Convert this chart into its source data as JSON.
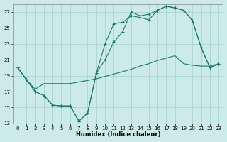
{
  "xlabel": "Humidex (Indice chaleur)",
  "bg_color": "#cceae8",
  "grid_color": "#aad4d0",
  "line_color": "#1a7a6e",
  "xlim": [
    -0.5,
    23.5
  ],
  "ylim": [
    13,
    28
  ],
  "xticks": [
    0,
    1,
    2,
    3,
    4,
    5,
    6,
    7,
    8,
    9,
    10,
    11,
    12,
    13,
    14,
    15,
    16,
    17,
    18,
    19,
    20,
    21,
    22,
    23
  ],
  "yticks": [
    13,
    15,
    17,
    19,
    21,
    23,
    25,
    27
  ],
  "line1_x": [
    0,
    1,
    2,
    3,
    4,
    5,
    6,
    7,
    8,
    9,
    10,
    11,
    12,
    13,
    14,
    15,
    16,
    17,
    18,
    19,
    20,
    21,
    22,
    23
  ],
  "line1_y": [
    20.0,
    18.5,
    17.0,
    16.5,
    15.3,
    15.2,
    15.2,
    13.3,
    14.3,
    19.3,
    23.0,
    25.5,
    25.7,
    26.5,
    26.3,
    26.0,
    27.2,
    27.7,
    27.5,
    27.2,
    25.9,
    22.5,
    20.0,
    20.5
  ],
  "line2_x": [
    0,
    1,
    2,
    3,
    4,
    5,
    6,
    7,
    8,
    9,
    10,
    11,
    12,
    13,
    14,
    15,
    16,
    17,
    18,
    19,
    20,
    21,
    22,
    23
  ],
  "line2_y": [
    20.0,
    18.5,
    17.0,
    16.5,
    15.3,
    15.2,
    15.2,
    13.3,
    14.3,
    19.3,
    21.0,
    23.2,
    24.5,
    27.0,
    26.5,
    26.7,
    27.2,
    27.7,
    27.5,
    27.2,
    25.9,
    22.5,
    20.0,
    20.5
  ],
  "line3_x": [
    0,
    1,
    2,
    3,
    4,
    5,
    6,
    7,
    8,
    9,
    10,
    11,
    12,
    13,
    14,
    15,
    16,
    17,
    18,
    19,
    20,
    21,
    22,
    23
  ],
  "line3_y": [
    20.0,
    18.5,
    17.3,
    18.0,
    18.0,
    18.0,
    18.0,
    18.2,
    18.4,
    18.6,
    18.9,
    19.2,
    19.5,
    19.8,
    20.2,
    20.5,
    20.9,
    21.2,
    21.5,
    20.5,
    20.3,
    20.2,
    20.2,
    20.5
  ]
}
